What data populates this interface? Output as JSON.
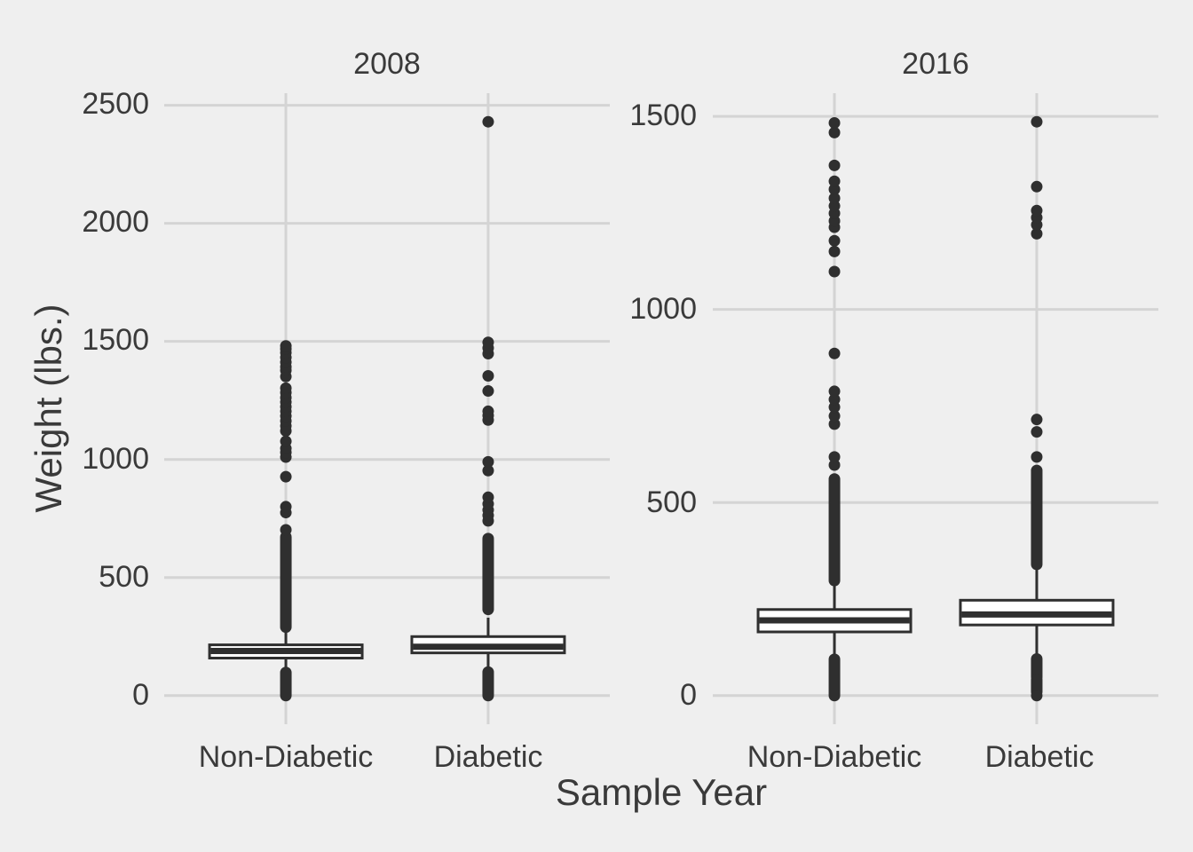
{
  "chart_data": {
    "type": "boxplot",
    "xlabel": "Sample Year",
    "ylabel": "Weight (lbs.)",
    "categories": [
      "Non-Diabetic",
      "Diabetic"
    ],
    "legend": "none",
    "grid": "on",
    "styles": {
      "background": "#EFEFEF",
      "gridline": "#D4D4D4",
      "ink": "#333333",
      "geometry": "#2F2F2F",
      "box_fill": "#FFFFFF"
    },
    "panels": [
      {
        "title": "2008",
        "ylim": [
          -121,
          2551
        ],
        "yticks": [
          0,
          500,
          1000,
          1500,
          2000,
          2500
        ],
        "ytick_labels": [
          "0",
          "500",
          "1000",
          "1500",
          "2000",
          "2500"
        ],
        "boxes": [
          {
            "category": "Non-Diabetic",
            "whisker_low": 103,
            "q1": 159,
            "median": 189,
            "q3": 215,
            "whisker_high": 277,
            "outlier_bands_low": [
              [
                0,
                98
              ]
            ],
            "outlier_bands_high": [
              [
                290,
                672
              ]
            ],
            "outliers_low": [],
            "outliers_high": [
              702,
              775,
              800,
              927,
              1010,
              1030,
              1047,
              1077,
              1121,
              1142,
              1163,
              1184,
              1204,
              1223,
              1243,
              1262,
              1283,
              1302,
              1351,
              1377,
              1392,
              1412,
              1432,
              1452,
              1468,
              1481
            ]
          },
          {
            "category": "Diabetic",
            "whisker_low": 102,
            "q1": 181,
            "median": 207,
            "q3": 250,
            "whisker_high": 330,
            "outlier_bands_low": [
              [
                0,
                100
              ]
            ],
            "outlier_bands_high": [
              [
                365,
                665
              ]
            ],
            "outliers_low": [],
            "outliers_high": [
              740,
              763,
              786,
              812,
              840,
              953,
              990,
              1167,
              1186,
              1204,
              1290,
              1354,
              1448,
              1472,
              1496,
              2430
            ]
          }
        ]
      },
      {
        "title": "2016",
        "ylim": [
          -74,
          1560
        ],
        "yticks": [
          0,
          500,
          1000,
          1500
        ],
        "ytick_labels": [
          "0",
          "500",
          "1000",
          "1500"
        ],
        "boxes": [
          {
            "category": "Non-Diabetic",
            "whisker_low": 98,
            "q1": 165,
            "median": 195,
            "q3": 223,
            "whisker_high": 295,
            "outlier_bands_low": [
              [
                0,
                94
              ]
            ],
            "outlier_bands_high": [
              [
                298,
                561
              ]
            ],
            "outliers_low": [],
            "outliers_high": [
              597,
              618,
              703,
              724,
              747,
              767,
              788,
              886,
              1098,
              1150,
              1178,
              1213,
              1229,
              1249,
              1268,
              1288,
              1311,
              1332,
              1373,
              1458,
              1483
            ]
          },
          {
            "category": "Diabetic",
            "whisker_low": 98,
            "q1": 183,
            "median": 210,
            "q3": 247,
            "whisker_high": 335,
            "outlier_bands_low": [
              [
                48,
                95
              ],
              [
                10,
                42
              ]
            ],
            "outlier_bands_high": [
              [
                340,
                583
              ]
            ],
            "outliers_low": [
              0
            ],
            "outliers_high": [
              618,
              683,
              715,
              1196,
              1219,
              1238,
              1256,
              1318,
              1486
            ]
          }
        ]
      }
    ]
  }
}
